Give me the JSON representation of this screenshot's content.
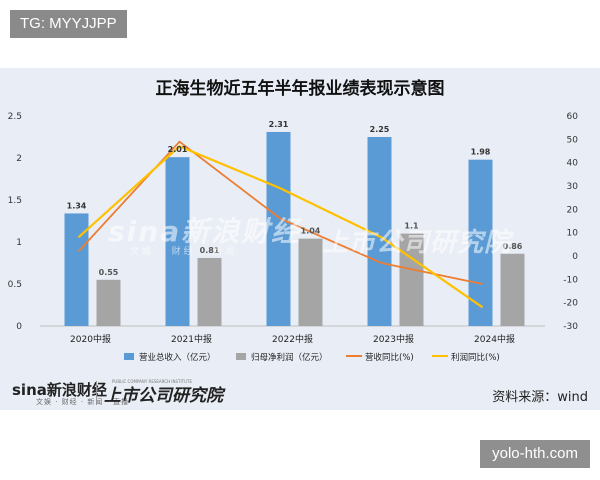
{
  "overlay_tags": {
    "top": "TG: MYYJJPP",
    "bottom": "yolo-hth.com"
  },
  "chart_data": {
    "type": "bar",
    "title": "正海生物近五年半年报业绩表现示意图",
    "categories": [
      "2020中报",
      "2021中报",
      "2022中报",
      "2023中报",
      "2024中报"
    ],
    "series": [
      {
        "name": "营业总收入（亿元）",
        "type": "bar",
        "axis": "left",
        "color": "#5b9bd5",
        "values": [
          1.34,
          2.01,
          2.31,
          2.25,
          1.98
        ]
      },
      {
        "name": "归母净利润（亿元）",
        "type": "bar",
        "axis": "left",
        "color": "#a5a5a5",
        "values": [
          0.55,
          0.81,
          1.04,
          1.1,
          0.86
        ]
      },
      {
        "name": "营收同比(%)",
        "type": "line",
        "axis": "right",
        "color": "#ed7d31",
        "values": [
          2,
          49,
          16,
          -3,
          -12
        ]
      },
      {
        "name": "利润同比(%)",
        "type": "line",
        "axis": "right",
        "color": "#ffc000",
        "values": [
          8,
          47,
          29,
          8,
          -22
        ]
      }
    ],
    "left_axis": {
      "ticks": [
        "0",
        "0.5",
        "1",
        "1.5",
        "2",
        "2.5"
      ],
      "min": 0,
      "max": 2.5
    },
    "right_axis": {
      "ticks": [
        "-30",
        "-20",
        "-10",
        "0",
        "10",
        "20",
        "30",
        "40",
        "50",
        "60"
      ],
      "min": -30,
      "max": 60
    },
    "bar_labels": {
      "revenue": [
        "1.34",
        "2.01",
        "2.31",
        "2.25",
        "1.98"
      ],
      "profit": [
        "0.55",
        "0.81",
        "1.04",
        "1.1",
        "0.86"
      ]
    },
    "legend_position": "bottom",
    "grid": false
  },
  "branding": {
    "sina": "sina新浪财经",
    "sina_sub": "文娱 · 财经 · 新闻 · 直播",
    "institute": "上市公司研究院",
    "institute_en": "PUBLIC COMPANY RESEARCH INSTITUTE",
    "watermark": "sina新浪财经",
    "watermark_sub": "文娱 · 财经 · 新闻",
    "watermark2": "上市公司研究院"
  },
  "source": "资料来源：wind"
}
